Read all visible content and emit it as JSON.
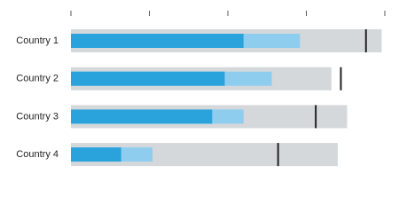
{
  "chart_data": {
    "type": "bullet",
    "categories": [
      "Country 1",
      "Country 2",
      "Country 3",
      "Country 4"
    ],
    "series": [
      {
        "color": "#d5d8da",
        "values": [
          99,
          83,
          88,
          85
        ]
      },
      {
        "color": "#8fcdef",
        "values": [
          73,
          64,
          55,
          26
        ]
      },
      {
        "color": "#2aa3dd",
        "values": [
          55,
          49,
          45,
          16
        ]
      }
    ],
    "targets": [
      94,
      86,
      78,
      66
    ],
    "target_color": "#222222",
    "xlim": [
      0,
      100
    ],
    "xticks": [
      0,
      25,
      50,
      75,
      100
    ]
  }
}
